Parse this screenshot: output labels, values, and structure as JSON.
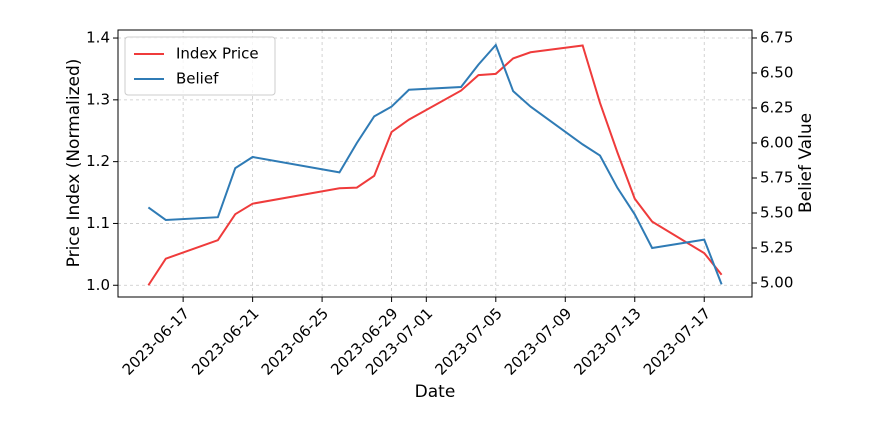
{
  "chart_data": {
    "type": "line",
    "x_label": "Date",
    "y_label": "Price Index (Normalized)",
    "y2_label": "Belief Value",
    "x": [
      "2023-06-15",
      "2023-06-16",
      "2023-06-19",
      "2023-06-20",
      "2023-06-21",
      "2023-06-26",
      "2023-06-27",
      "2023-06-28",
      "2023-06-29",
      "2023-06-30",
      "2023-07-03",
      "2023-07-04",
      "2023-07-05",
      "2023-07-06",
      "2023-07-07",
      "2023-07-10",
      "2023-07-11",
      "2023-07-12",
      "2023-07-13",
      "2023-07-14",
      "2023-07-17",
      "2023-07-18"
    ],
    "series": [
      {
        "name": "Index Price",
        "color": "#ef3b3b",
        "axis": "y",
        "values": [
          1.0,
          1.043,
          1.073,
          1.115,
          1.132,
          1.157,
          1.158,
          1.177,
          1.248,
          1.268,
          1.315,
          1.34,
          1.342,
          1.367,
          1.377,
          1.388,
          1.295,
          1.215,
          1.14,
          1.103,
          1.052,
          1.017
        ]
      },
      {
        "name": "Belief",
        "color": "#2f7bb5",
        "axis": "y2",
        "values": [
          5.54,
          5.45,
          5.47,
          5.82,
          5.9,
          5.79,
          6.0,
          6.19,
          6.26,
          6.38,
          6.4,
          6.56,
          6.7,
          6.37,
          6.26,
          5.99,
          5.91,
          5.68,
          5.49,
          5.25,
          5.31,
          4.99
        ]
      }
    ],
    "xlim": [
      "2023-06-13T06",
      "2023-07-19T18"
    ],
    "xticks": [
      "2023-06-17",
      "2023-06-21",
      "2023-06-25",
      "2023-06-29",
      "2023-07-01",
      "2023-07-05",
      "2023-07-09",
      "2023-07-13",
      "2023-07-17"
    ],
    "ylim": [
      0.981,
      1.413
    ],
    "yticks": [
      {
        "value": 1,
        "label": "1.0"
      },
      1.1,
      1.2,
      1.3,
      1.4
    ],
    "y2lim": [
      4.9,
      6.807
    ],
    "y2ticks": [
      {
        "value": 5,
        "label": "5.00"
      },
      {
        "value": 5.25,
        "label": "5.25"
      },
      {
        "value": 5.5,
        "label": "5.50"
      },
      {
        "value": 5.75,
        "label": "5.75"
      },
      {
        "value": 6,
        "label": "6.00"
      },
      {
        "value": 6.25,
        "label": "6.25"
      },
      {
        "value": 6.5,
        "label": "6.50"
      },
      {
        "value": 6.75,
        "label": "6.75"
      }
    ],
    "grid": true,
    "legend": "upper left"
  }
}
